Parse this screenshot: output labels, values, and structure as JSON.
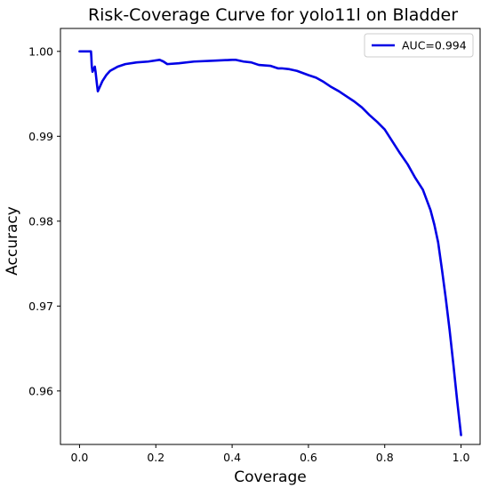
{
  "chart_data": {
    "type": "line",
    "title": "Risk-Coverage Curve for yolo11l on Bladder",
    "xlabel": "Coverage",
    "ylabel": "Accuracy",
    "xlim": [
      -0.05,
      1.05
    ],
    "ylim": [
      0.9537,
      1.0027
    ],
    "xticks": [
      0.0,
      0.2,
      0.4,
      0.6,
      0.8,
      1.0
    ],
    "xtick_labels": [
      "0.0",
      "0.2",
      "0.4",
      "0.6",
      "0.8",
      "1.0"
    ],
    "yticks": [
      0.96,
      0.97,
      0.98,
      0.99,
      1.0
    ],
    "ytick_labels": [
      "0.96",
      "0.97",
      "0.98",
      "0.99",
      "1.00"
    ],
    "grid": false,
    "legend_position": "top-right",
    "series": [
      {
        "name": "AUC=0.994",
        "color": "#0000e6",
        "x": [
          0.0,
          0.03,
          0.031,
          0.032,
          0.034,
          0.036,
          0.038,
          0.04,
          0.042,
          0.044,
          0.046,
          0.048,
          0.05,
          0.06,
          0.07,
          0.08,
          0.1,
          0.12,
          0.15,
          0.18,
          0.21,
          0.22,
          0.23,
          0.26,
          0.3,
          0.35,
          0.4,
          0.41,
          0.43,
          0.45,
          0.47,
          0.5,
          0.52,
          0.53,
          0.55,
          0.57,
          0.6,
          0.62,
          0.64,
          0.66,
          0.68,
          0.7,
          0.72,
          0.74,
          0.76,
          0.78,
          0.8,
          0.82,
          0.84,
          0.86,
          0.88,
          0.9,
          0.91,
          0.92,
          0.93,
          0.94,
          0.95,
          0.96,
          0.97,
          0.98,
          0.99,
          1.0
        ],
        "y": [
          1.0,
          1.0,
          0.9993,
          0.9983,
          0.9976,
          0.9978,
          0.998,
          0.9982,
          0.9976,
          0.9968,
          0.996,
          0.9953,
          0.9955,
          0.9965,
          0.9972,
          0.9977,
          0.9982,
          0.9985,
          0.9987,
          0.9988,
          0.999,
          0.9988,
          0.9985,
          0.9986,
          0.9988,
          0.9989,
          0.999,
          0.999,
          0.9988,
          0.9987,
          0.9984,
          0.9983,
          0.998,
          0.998,
          0.9979,
          0.9977,
          0.9972,
          0.9969,
          0.9964,
          0.9958,
          0.9953,
          0.9947,
          0.9941,
          0.9934,
          0.9925,
          0.9917,
          0.9908,
          0.9894,
          0.988,
          0.9867,
          0.9851,
          0.9837,
          0.9825,
          0.9813,
          0.9796,
          0.9775,
          0.9743,
          0.9709,
          0.9672,
          0.9631,
          0.9588,
          0.9548
        ]
      }
    ]
  }
}
